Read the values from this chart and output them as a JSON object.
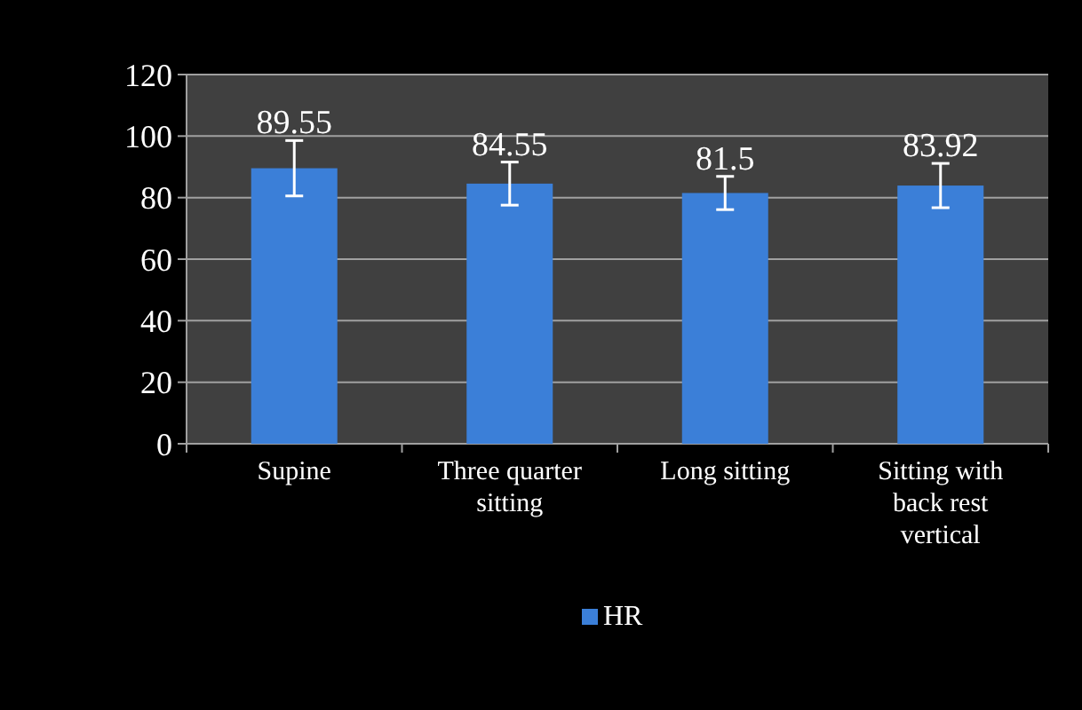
{
  "chart_data": {
    "type": "bar",
    "categories": [
      "Supine",
      "Three quarter sitting",
      "Long sitting",
      "Sitting with back rest vertical"
    ],
    "series": [
      {
        "name": "HR",
        "color": "#3b7fd8",
        "values": [
          89.55,
          84.55,
          81.5,
          83.92
        ],
        "errors": [
          9,
          7,
          5.4,
          7.2
        ]
      }
    ],
    "ylim": [
      0,
      120
    ],
    "yticks": [
      0,
      20,
      40,
      60,
      80,
      100,
      120
    ],
    "grid": "y",
    "data_labels": true,
    "legend": "bottom"
  }
}
